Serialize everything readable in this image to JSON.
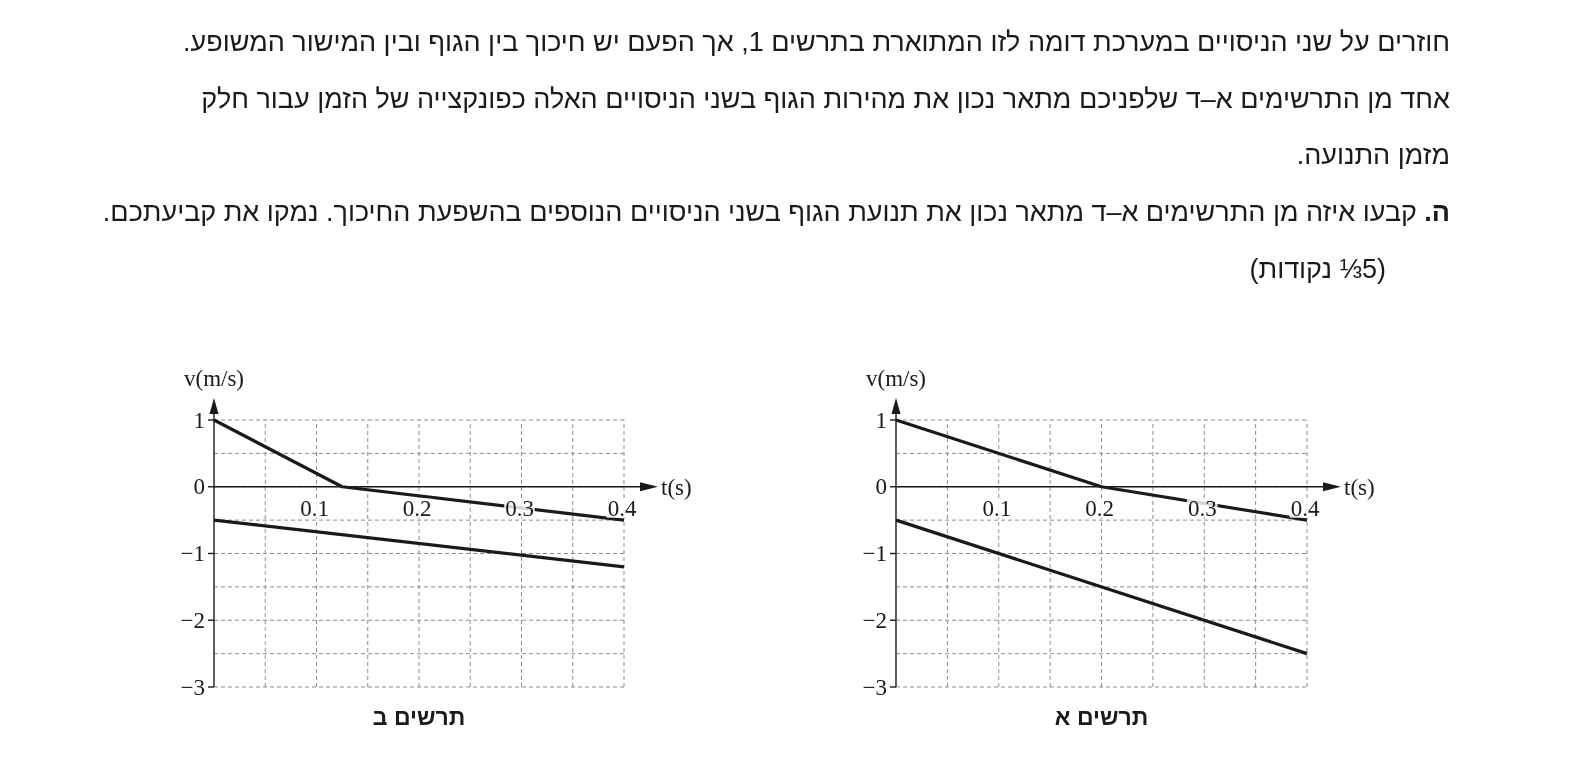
{
  "chart_data": [
    {
      "type": "line",
      "title": "תרשים א",
      "xlabel": "t(s)",
      "ylabel": "v(m/s)",
      "annotations": [
        "חוזרים על שני הניסויים במערכת דומה לזו המתוארת בתרשים 1, אך הפעם יש חיכוך בין הגוף ובין המישור המשופע.",
        "אחד מן התרשימים א–ד שלפניכם מתאר נכון את מהירות הגוף בשני הניסויים האלה כפונקצייה של הזמן עבור חלק מזמן התנועה.",
        "ה.",
        "קבעו איזה מן התרשימים א–ד מתאר נכון את תנועת הגוף בשני הניסויים הנוספים בהשפעת החיכוך. נמקו את קביעתכם.",
        "(5⅓ נקודות)"
      ],
      "series": [
        {
          "color": "#1a1a1a",
          "x": [
            0,
            0.2,
            0.4
          ],
          "values": [
            1,
            0,
            -0.5
          ]
        },
        {
          "color": "#1a1a1a",
          "x": [
            0,
            0.4
          ],
          "values": [
            -0.5,
            -2.5
          ]
        }
      ],
      "xlim": [
        0,
        0.4
      ],
      "ylim": [
        -3,
        1
      ],
      "xticks": [
        {
          "value": 0.05,
          "label": null
        },
        0.1,
        {
          "value": 0.15,
          "label": null
        },
        0.2,
        {
          "value": 0.25,
          "label": null
        },
        0.3,
        {
          "value": 0.35,
          "label": null
        },
        0.4
      ],
      "yticks": [
        -3,
        {
          "value": -2.5,
          "label": null
        },
        -2,
        {
          "value": -1.5,
          "label": null
        },
        -1,
        {
          "value": -0.5,
          "label": null
        },
        0,
        {
          "value": 0.5,
          "label": null
        },
        1
      ],
      "grid": true
    },
    {
      "type": "line",
      "title": "תרשים ב",
      "xlabel": "t(s)",
      "ylabel": "v(m/s)",
      "series": [
        {
          "color": "#1a1a1a",
          "x": [
            0,
            0.125,
            0.4
          ],
          "values": [
            1,
            0,
            -0.5
          ]
        },
        {
          "color": "#1a1a1a",
          "x": [
            0,
            0.4
          ],
          "values": [
            -0.5,
            -1.2
          ]
        }
      ],
      "xlim": [
        0,
        0.4
      ],
      "ylim": [
        -3,
        1
      ],
      "xticks": [
        {
          "value": 0.05,
          "label": null
        },
        0.1,
        {
          "value": 0.15,
          "label": null
        },
        0.2,
        {
          "value": 0.25,
          "label": null
        },
        0.3,
        {
          "value": 0.35,
          "label": null
        },
        0.4
      ],
      "yticks": [
        -3,
        {
          "value": -2.5,
          "label": null
        },
        -2,
        {
          "value": -1.5,
          "label": null
        },
        -1,
        {
          "value": -0.5,
          "label": null
        },
        0,
        {
          "value": 0.5,
          "label": null
        },
        1
      ],
      "grid": true
    }
  ]
}
